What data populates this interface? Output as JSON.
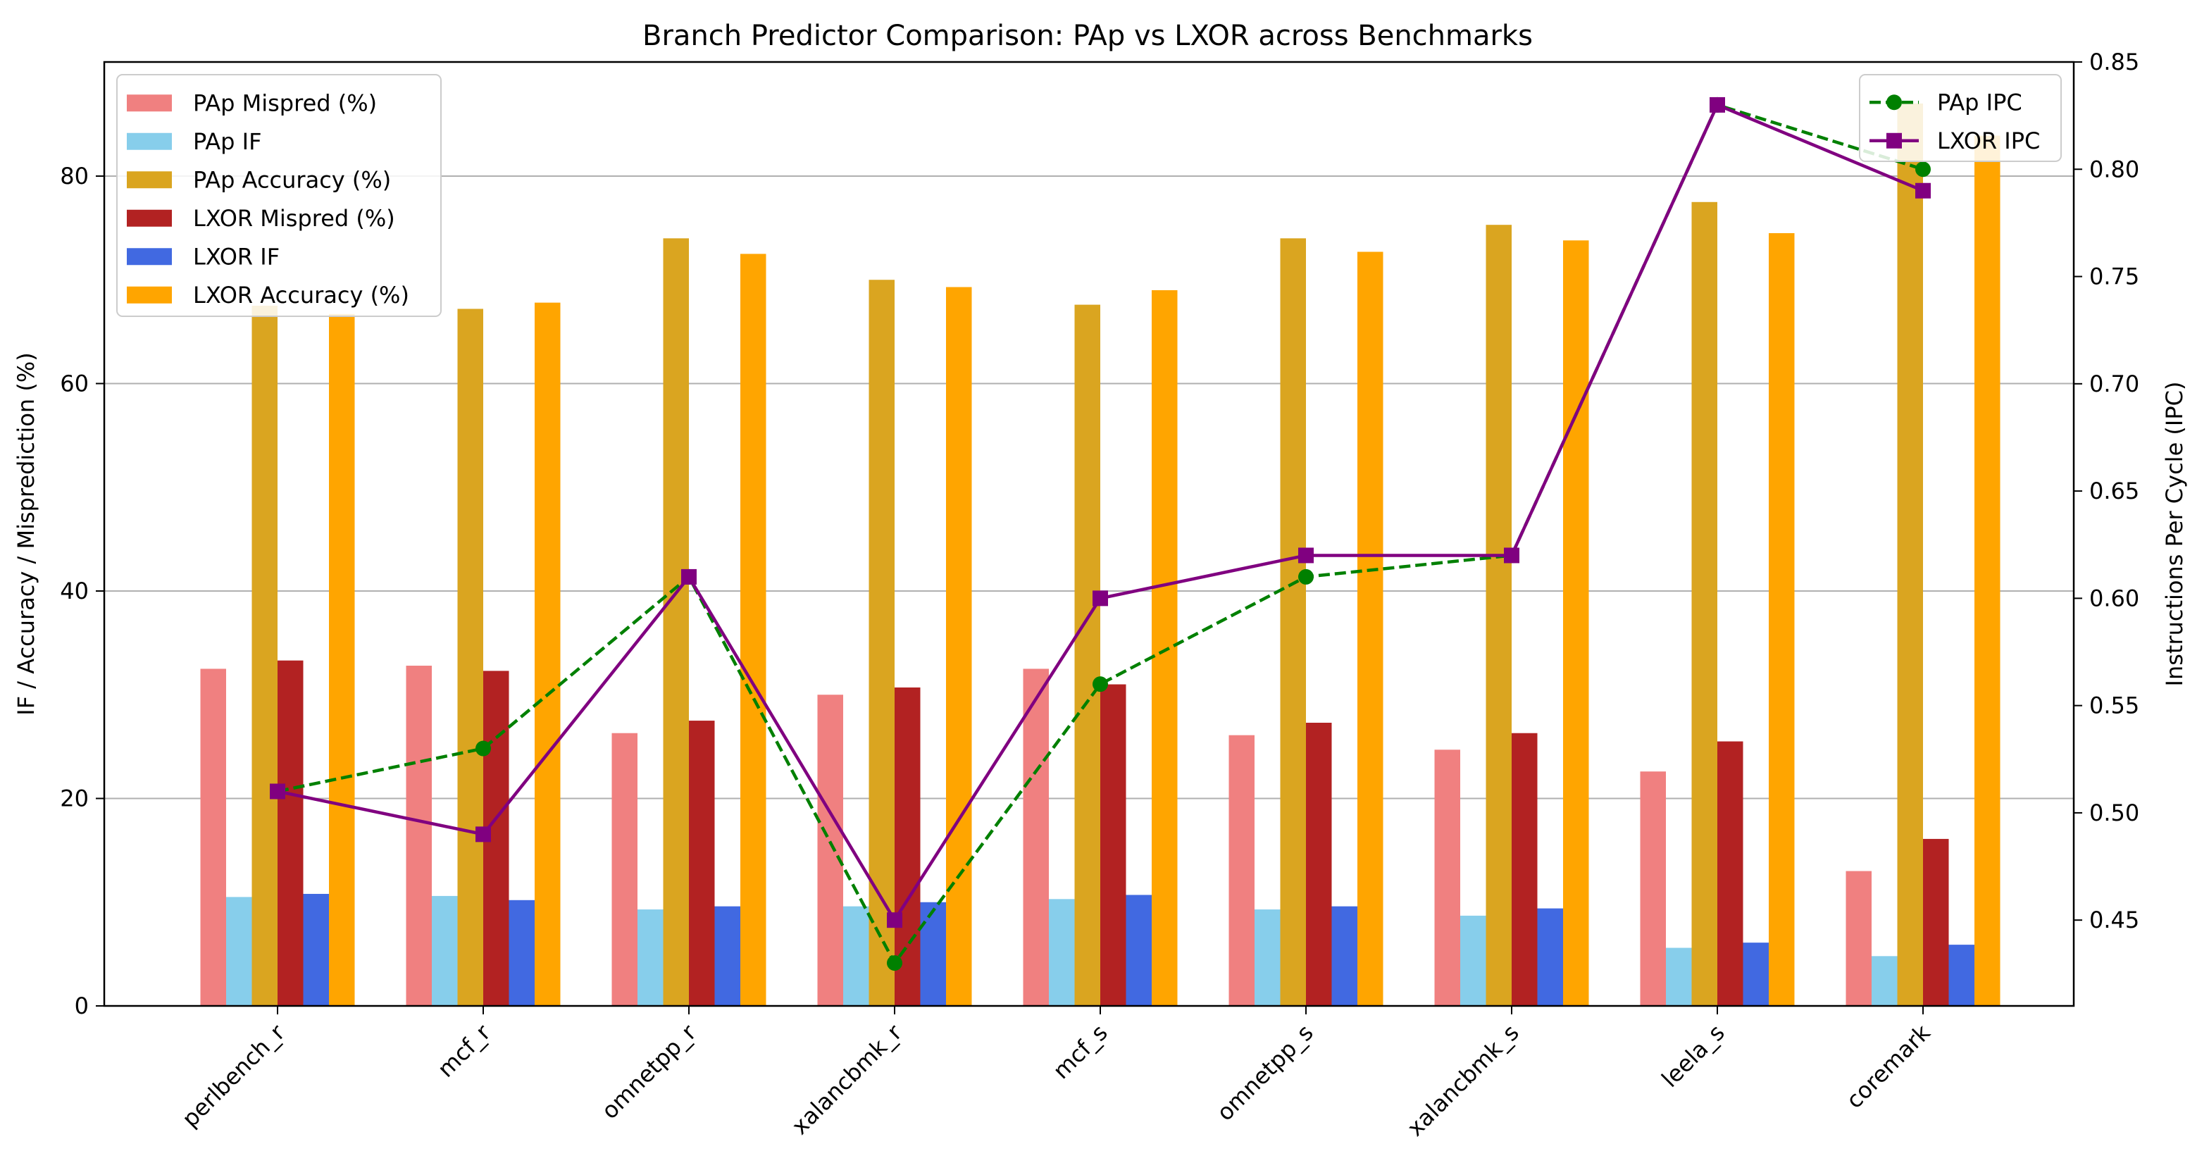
{
  "chart_data": {
    "type": "bar",
    "title": "Branch Predictor Comparison: PAp vs LXOR across Benchmarks",
    "xlabel": "",
    "ylabel": "IF / Accuracy / Misprediction (%)",
    "y2label": "Instructions Per Cycle (IPC)",
    "ylim": [
      0,
      91
    ],
    "y2lim": [
      0.41,
      0.85
    ],
    "yticks": [
      0,
      20,
      40,
      60,
      80
    ],
    "y2ticks": [
      0.45,
      0.5,
      0.55,
      0.6,
      0.65,
      0.7,
      0.75,
      0.8,
      0.85
    ],
    "grid": "horizontal",
    "categories": [
      "perlbench_r",
      "mcf_r",
      "omnetpp_r",
      "xalancbmk_r",
      "mcf_s",
      "omnetpp_s",
      "xalancbmk_s",
      "leela_s",
      "coremark"
    ],
    "series": [
      {
        "name": "PAp Mispred (%)",
        "type": "bar",
        "color": "#F08080",
        "values": [
          32.5,
          32.8,
          26.3,
          30.0,
          32.5,
          26.1,
          24.7,
          22.6,
          13.0
        ]
      },
      {
        "name": "PAp IF",
        "type": "bar",
        "color": "#87CEEB",
        "values": [
          10.5,
          10.6,
          9.3,
          9.6,
          10.3,
          9.3,
          8.7,
          5.6,
          4.8
        ]
      },
      {
        "name": "PAp Accuracy (%)",
        "type": "bar",
        "color": "#DAA520",
        "values": [
          67.5,
          67.2,
          74.0,
          70.0,
          67.6,
          74.0,
          75.3,
          77.5,
          87.0
        ]
      },
      {
        "name": "LXOR Mispred (%)",
        "type": "bar",
        "color": "#B22222",
        "values": [
          33.3,
          32.3,
          27.5,
          30.7,
          31.0,
          27.3,
          26.3,
          25.5,
          16.1
        ]
      },
      {
        "name": "LXOR IF",
        "type": "bar",
        "color": "#4169E1",
        "values": [
          10.8,
          10.2,
          9.6,
          10.0,
          10.7,
          9.6,
          9.4,
          6.1,
          5.9
        ]
      },
      {
        "name": "LXOR Accuracy (%)",
        "type": "bar",
        "color": "#FFA500",
        "values": [
          66.7,
          67.8,
          72.5,
          69.3,
          69.0,
          72.7,
          73.8,
          74.5,
          83.9
        ]
      }
    ],
    "lines": [
      {
        "name": "PAp IPC",
        "axis": "right",
        "color": "#008000",
        "dash": true,
        "marker": "circle",
        "values": [
          0.51,
          0.53,
          0.61,
          0.43,
          0.56,
          0.61,
          0.62,
          0.83,
          0.8
        ]
      },
      {
        "name": "LXOR IPC",
        "axis": "right",
        "color": "#800080",
        "dash": false,
        "marker": "square",
        "values": [
          0.51,
          0.49,
          0.61,
          0.45,
          0.6,
          0.62,
          0.62,
          0.83,
          0.79
        ]
      }
    ],
    "legend_bars_position": "upper-left",
    "legend_lines_position": "upper-right"
  }
}
